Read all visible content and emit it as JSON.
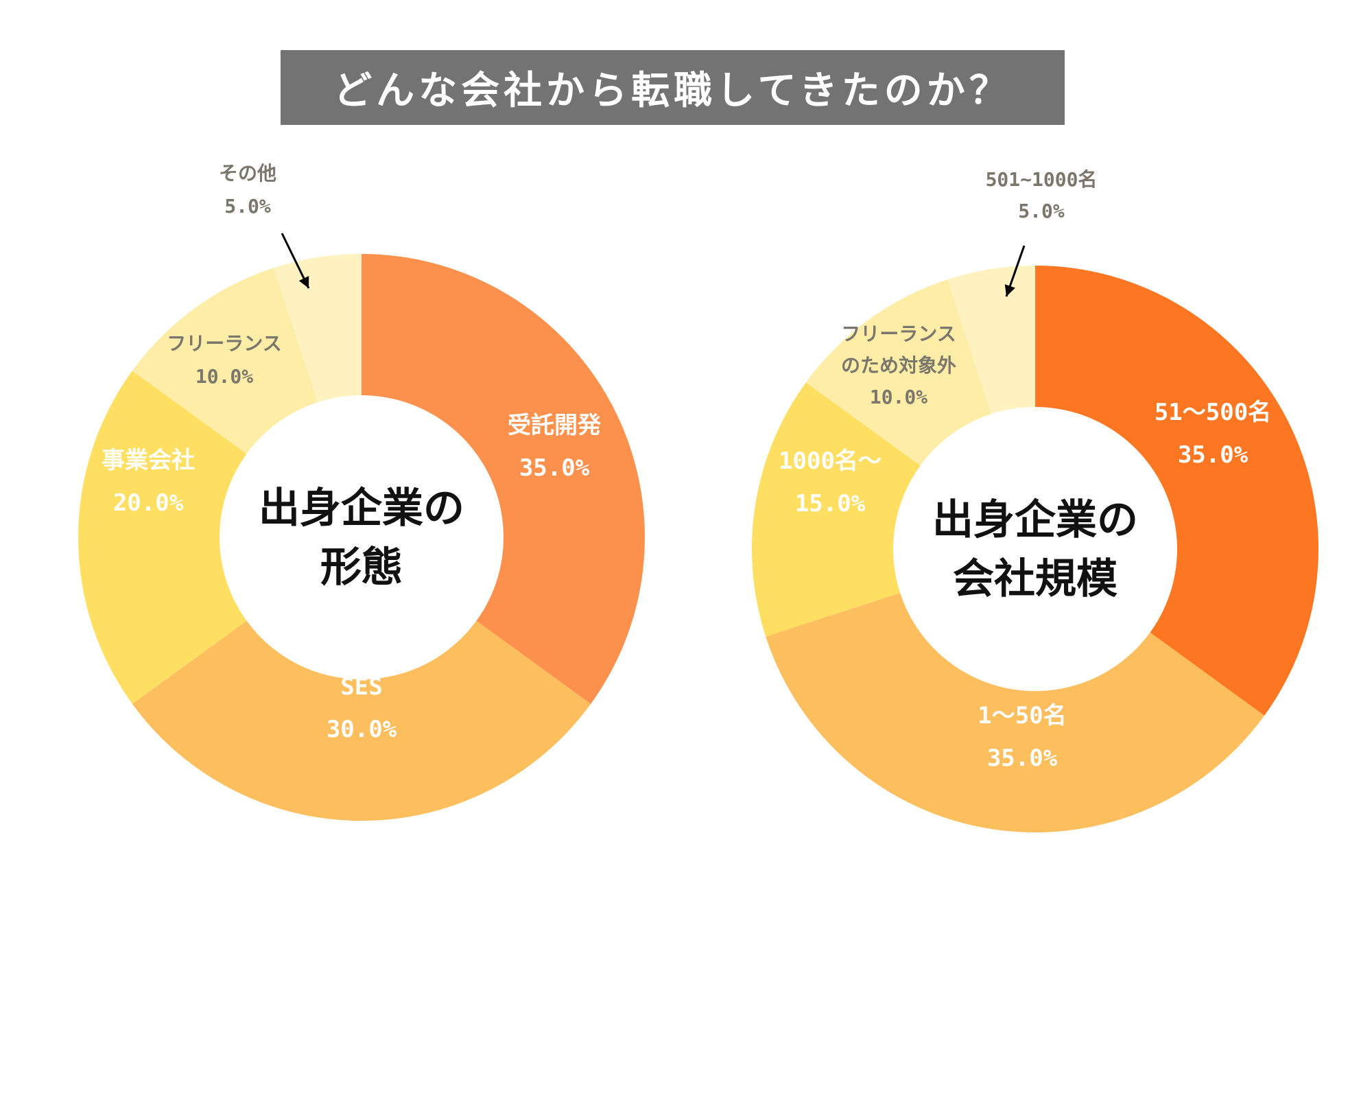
{
  "title": "どんな会社から転職してきたのか？",
  "chart_data": [
    {
      "type": "pie",
      "center_label": [
        "出身企業の",
        "形態"
      ],
      "categories": [
        "受託開発",
        "SES",
        "事業会社",
        "フリーランス",
        "その他"
      ],
      "values": [
        35.0,
        30.0,
        20.0,
        10.0,
        5.0
      ],
      "value_labels": [
        "35.0%",
        "30.0%",
        "20.0%",
        "10.0%",
        "5.0%"
      ],
      "colors": [
        "#FC914D",
        "#FDBE5E",
        "#FEDF62",
        "#FDEDA7",
        "#FEF2C0"
      ],
      "label_colors": [
        "#ffffff",
        "#ffffff",
        "#ffffff",
        "#7a766c",
        "#7a766c"
      ]
    },
    {
      "type": "pie",
      "center_label": [
        "出身企業の",
        "会社規模"
      ],
      "categories": [
        "51〜500名",
        "1〜50名",
        "1000名〜",
        "フリーランスのため対象外",
        "501~1000名"
      ],
      "category_lines": [
        [
          "51〜500名"
        ],
        [
          "1〜50名"
        ],
        [
          "1000名〜"
        ],
        [
          "フリーランス",
          "のため対象外"
        ],
        [
          "501~1000名"
        ]
      ],
      "values": [
        35.0,
        35.0,
        15.0,
        10.0,
        5.0
      ],
      "value_labels": [
        "35.0%",
        "35.0%",
        "15.0%",
        "10.0%",
        "5.0%"
      ],
      "colors": [
        "#FD7723",
        "#FDBE5E",
        "#FEDF62",
        "#FDEDA7",
        "#FEF2C0"
      ],
      "label_colors": [
        "#ffffff",
        "#ffffff",
        "#ffffff",
        "#7a766c",
        "#7a766c"
      ]
    }
  ]
}
